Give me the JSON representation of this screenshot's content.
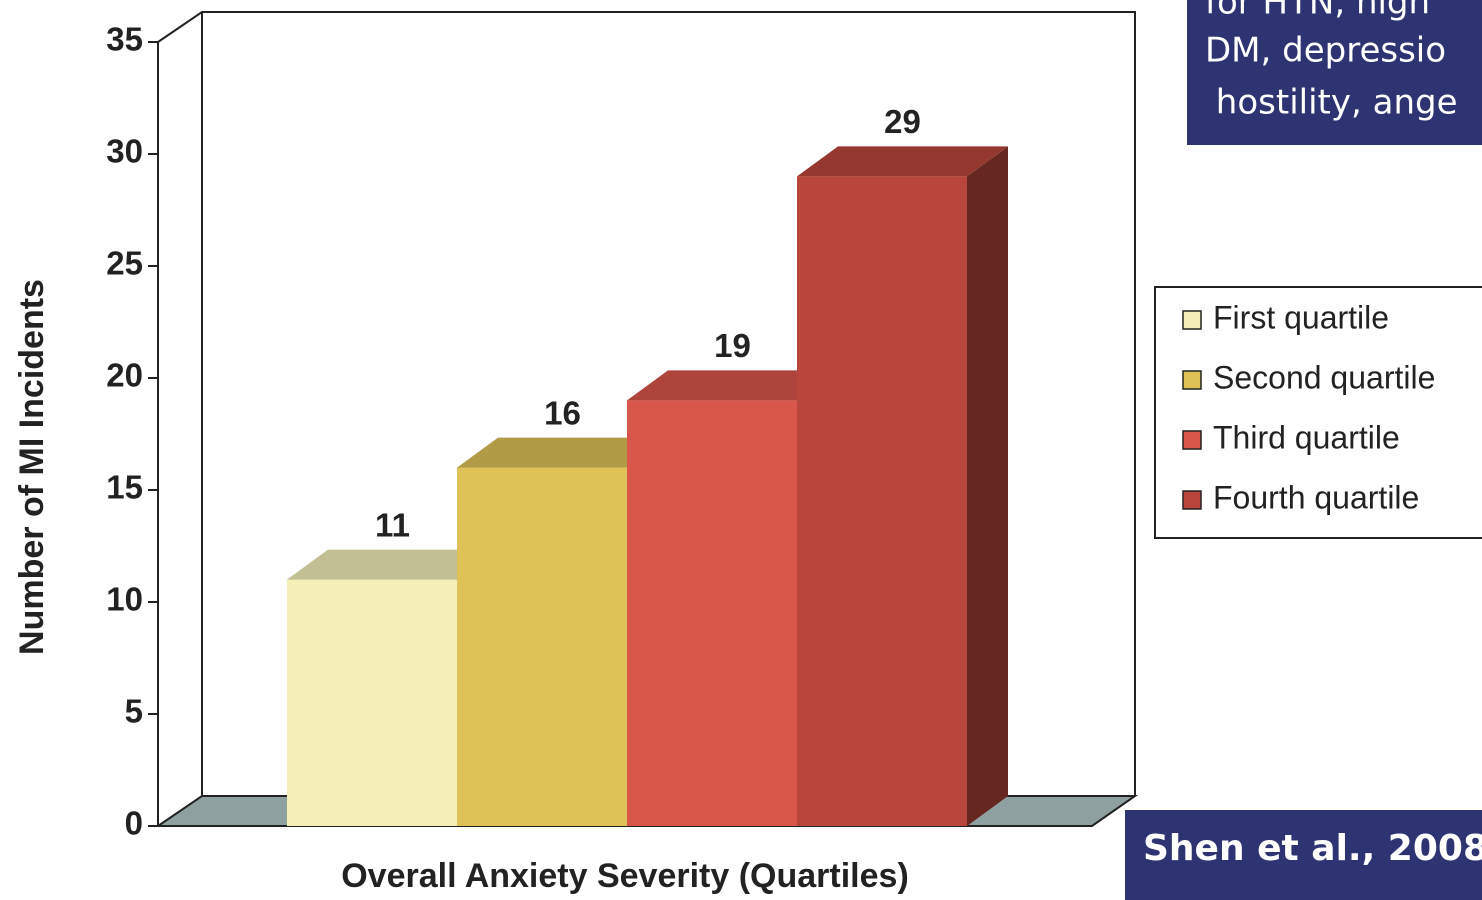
{
  "chart_data": {
    "type": "bar",
    "categories": [
      null
    ],
    "series": [
      {
        "name": "First quartile",
        "color": "#f3efb6",
        "values": [
          11
        ]
      },
      {
        "name": "Second quartile",
        "color": "#dfc257",
        "values": [
          16
        ]
      },
      {
        "name": "Third quartile",
        "color": "#d9564b",
        "values": [
          19
        ]
      },
      {
        "name": "Fourth quartile",
        "color": "#b9463c",
        "values": [
          29
        ]
      }
    ],
    "ylabel": "Number of MI Incidents",
    "xlabel": "Overall Anxiety Severity (Quartiles)",
    "ylim": [
      0,
      35
    ],
    "yticks": [
      0,
      5,
      10,
      15,
      20,
      25,
      30,
      35
    ],
    "grid": false,
    "legend": "right",
    "annotations": [
      "for HTN, high",
      "DM,  depressio",
      " hostility, ange",
      "Shen et al., 2008"
    ]
  }
}
